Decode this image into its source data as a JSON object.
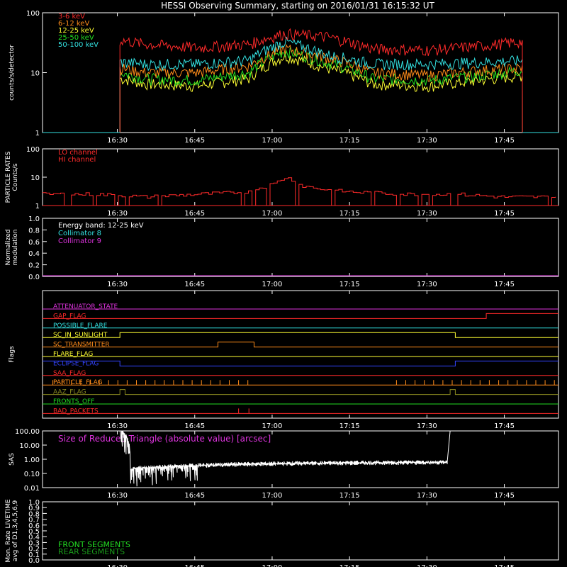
{
  "title": "HESSI Observing Summary, starting on 2016/01/31 16:15:32 UT",
  "time_ticks": [
    "16:30",
    "16:45",
    "17:00",
    "17:15",
    "17:30",
    "17:45"
  ],
  "chart_data": [
    {
      "id": "count-rates",
      "type": "line",
      "ylabel": "counts/s/detector",
      "yscale": "log",
      "ylim": [
        1,
        100
      ],
      "yticks": [
        "1",
        "10",
        "100"
      ],
      "x_unit": "minutes after 16:15:32 UT",
      "x": [
        15,
        20,
        30,
        40,
        47,
        55,
        64,
        75,
        85,
        93
      ],
      "series": [
        {
          "name": "3-6 keV",
          "color": "#ff2a2a",
          "values": [
            35,
            30,
            26,
            30,
            45,
            40,
            25,
            24,
            28,
            33
          ]
        },
        {
          "name": "6-12 keV",
          "color": "#ff8c1a",
          "values": [
            12,
            10,
            10,
            13,
            25,
            18,
            10,
            9,
            11,
            12
          ]
        },
        {
          "name": "12-25 keV",
          "color": "#ffff33",
          "values": [
            8,
            6.5,
            6,
            8,
            19,
            12,
            6.5,
            6,
            7.5,
            9
          ]
        },
        {
          "name": "25-50 keV",
          "color": "#22dd22",
          "values": [
            10,
            8,
            7.5,
            10,
            23,
            15,
            8,
            7.5,
            9,
            11
          ]
        },
        {
          "name": "50-100 keV",
          "color": "#33e0e0",
          "values": [
            15,
            14,
            14,
            16,
            33,
            20,
            14,
            14,
            15,
            16
          ]
        }
      ]
    },
    {
      "id": "particle-rates",
      "type": "line",
      "ylabel": "PARTICLE RATES Counts/s",
      "yscale": "log",
      "ylim": [
        1,
        100
      ],
      "yticks": [
        "1",
        "10",
        "100"
      ],
      "x": [
        0,
        10,
        20,
        30,
        40,
        45,
        47,
        50,
        55,
        60,
        70,
        80,
        89,
        100
      ],
      "series": [
        {
          "name": "LO channel",
          "color": "#ff2a2a",
          "values": [
            1,
            1,
            1,
            1,
            1,
            1,
            1,
            1,
            1,
            1,
            1,
            1,
            1,
            1
          ]
        },
        {
          "name": "HI channel",
          "color": "#ff2a2a",
          "values": [
            2.5,
            2.5,
            2,
            2.5,
            3,
            6,
            10,
            5,
            3.5,
            3,
            2.5,
            2.5,
            2,
            2
          ]
        }
      ]
    },
    {
      "id": "modulation",
      "type": "line",
      "ylabel": "Normalized modulation",
      "ylim": [
        0,
        1
      ],
      "yticks": [
        "0.0",
        "0.2",
        "0.4",
        "0.6",
        "0.8",
        "1.0"
      ],
      "annotation": "Energy band: 12-25 keV",
      "series": [
        {
          "name": "Collimator 8",
          "color": "#33e0e0",
          "values": []
        },
        {
          "name": "Collimator 9",
          "color": "#dd33dd",
          "values": [
            0,
            0
          ]
        }
      ]
    },
    {
      "id": "flags",
      "type": "line",
      "ylabel": "Flags",
      "series": [
        {
          "name": "ATTENUATOR_STATE",
          "color": "#dd33dd",
          "segments": [
            [
              0,
              100,
              0
            ]
          ]
        },
        {
          "name": "GAP_FLAG",
          "color": "#ff2a2a",
          "segments": [
            [
              0,
              86,
              0
            ],
            [
              86,
              100,
              1
            ]
          ]
        },
        {
          "name": "POSSIBLE_FLARE",
          "color": "#33e0e0",
          "segments": [
            [
              0,
              100,
              0
            ]
          ]
        },
        {
          "name": "SC_IN_SUNLIGHT",
          "color": "#ffff33",
          "segments": [
            [
              0,
              15,
              0
            ],
            [
              15,
              80,
              1
            ],
            [
              80,
              100,
              0
            ]
          ]
        },
        {
          "name": "SC_TRANSMITTER",
          "color": "#ff8c1a",
          "segments": [
            [
              0,
              34,
              0
            ],
            [
              34,
              41,
              1
            ],
            [
              41,
              100,
              0
            ]
          ]
        },
        {
          "name": "FLARE_FLAG",
          "color": "#ffff33",
          "segments": [
            [
              0,
              100,
              0
            ]
          ]
        },
        {
          "name": "ECLIPSE_FLAG",
          "color": "#3344ff",
          "segments": [
            [
              0,
              15,
              1
            ],
            [
              15,
              80,
              0
            ],
            [
              80,
              100,
              1
            ]
          ]
        },
        {
          "name": "SAA_FLAG",
          "color": "#ff2a2a",
          "segments": [
            [
              0,
              100,
              0
            ]
          ]
        },
        {
          "name": "PARTICLE_FLAG",
          "color": "#ff8c1a",
          "segments": [
            [
              0,
              100,
              0
            ]
          ]
        },
        {
          "name": "AAZ_FLAG",
          "color": "#8a8a20",
          "segments": [
            [
              0,
              15,
              0
            ],
            [
              15,
              16,
              1
            ],
            [
              16,
              79,
              0
            ],
            [
              79,
              80,
              1
            ],
            [
              80,
              100,
              0
            ]
          ]
        },
        {
          "name": "FRONTS_OFF",
          "color": "#22dd22",
          "segments": [
            [
              0,
              100,
              0
            ]
          ]
        },
        {
          "name": "BAD_PACKETS",
          "color": "#ff2a2a",
          "segments": [
            [
              0,
              100,
              0
            ]
          ]
        }
      ]
    },
    {
      "id": "sas",
      "type": "line",
      "ylabel": "SAS",
      "yscale": "log",
      "ylim": [
        0.01,
        100
      ],
      "yticks": [
        "0.01",
        "0.10",
        "1.00",
        "10.00",
        "100.00"
      ],
      "annotation": "Size of Reduced Triangle (absolute value) [arcsec]",
      "x": [
        15,
        17,
        20,
        25,
        35,
        50,
        65,
        79
      ],
      "series": [
        {
          "name": "",
          "color": "#ffffff",
          "values": [
            100,
            0.2,
            0.25,
            0.3,
            0.4,
            0.5,
            0.55,
            0.6
          ]
        }
      ]
    },
    {
      "id": "livetime",
      "type": "line",
      "ylabel": "Mon. Rate LIVETIME avg of D1,3,4,5,6,9",
      "ylim": [
        0,
        1
      ],
      "yticks": [
        "0.0",
        "0.1",
        "0.2",
        "0.3",
        "0.4",
        "0.5",
        "0.6",
        "0.7",
        "0.8",
        "0.9",
        "1.0"
      ],
      "series": [
        {
          "name": "FRONT SEGMENTS",
          "color": "#22dd22",
          "values": []
        },
        {
          "name": "REAR SEGMENTS",
          "color": "#1a9a1a",
          "values": []
        }
      ]
    }
  ]
}
